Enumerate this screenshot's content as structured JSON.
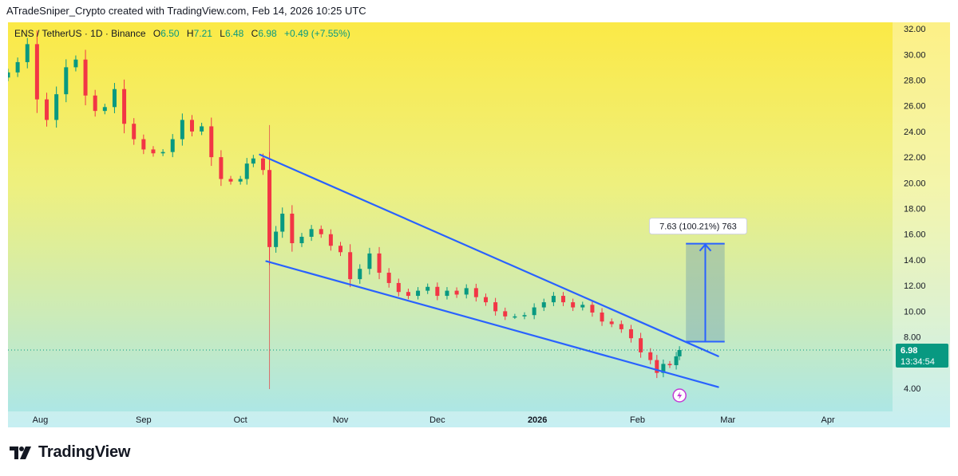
{
  "header": {
    "caption": "ATradeSniper_Crypto created with TradingView.com, Feb 14, 2026 10:25 UTC"
  },
  "legend": {
    "symbol": "ENS / TetherUS · 1D · Binance",
    "open_label": "O",
    "open": "6.50",
    "high_label": "H",
    "high": "7.21",
    "low_label": "L",
    "low": "6.48",
    "close_label": "C",
    "close": "6.98",
    "change": "+0.49 (+7.55%)"
  },
  "price_tag": {
    "price": "6.98",
    "countdown": "13:34:54"
  },
  "measure": {
    "label": "7.63 (100.21%) 763"
  },
  "footer": {
    "brand": "TradingView"
  },
  "colors": {
    "up": "#089981",
    "down": "#f23645",
    "trend": "#2962ff",
    "measure_fill": "#5b8fb0"
  },
  "chart_data": {
    "type": "candlestick",
    "title": "ENS / TetherUS · 1D · Binance",
    "x_ticks": [
      "Aug",
      "Sep",
      "Oct",
      "Nov",
      "Dec",
      "2026",
      "Feb",
      "Mar",
      "Apr"
    ],
    "y_ticks": [
      "32.00",
      "30.00",
      "28.00",
      "26.00",
      "24.00",
      "22.00",
      "20.00",
      "18.00",
      "16.00",
      "14.00",
      "12.00",
      "10.00",
      "8.00",
      "4.00"
    ],
    "ylim": [
      2.2,
      32.5
    ],
    "x_range": [
      "2025-07-21",
      "2026-04-21"
    ],
    "last_close": 6.98,
    "closes": [
      [
        "2025-07-21",
        28.6
      ],
      [
        "2025-07-24",
        29.4
      ],
      [
        "2025-07-27",
        30.8
      ],
      [
        "2025-07-30",
        26.5
      ],
      [
        "2025-08-02",
        24.9
      ],
      [
        "2025-08-05",
        26.9
      ],
      [
        "2025-08-08",
        29.0
      ],
      [
        "2025-08-11",
        29.6
      ],
      [
        "2025-08-14",
        26.8
      ],
      [
        "2025-08-17",
        25.6
      ],
      [
        "2025-08-20",
        25.9
      ],
      [
        "2025-08-23",
        27.3
      ],
      [
        "2025-08-26",
        24.6
      ],
      [
        "2025-08-29",
        23.4
      ],
      [
        "2025-09-01",
        22.6
      ],
      [
        "2025-09-04",
        22.3
      ],
      [
        "2025-09-07",
        22.4
      ],
      [
        "2025-09-10",
        23.4
      ],
      [
        "2025-09-13",
        24.9
      ],
      [
        "2025-09-16",
        24.0
      ],
      [
        "2025-09-19",
        24.4
      ],
      [
        "2025-09-22",
        22.0
      ],
      [
        "2025-09-25",
        20.3
      ],
      [
        "2025-09-28",
        20.1
      ],
      [
        "2025-10-01",
        20.3
      ],
      [
        "2025-10-03",
        21.5
      ],
      [
        "2025-10-05",
        21.9
      ],
      [
        "2025-10-08",
        21.0
      ],
      [
        "2025-10-10",
        15.0
      ],
      [
        "2025-10-12",
        16.2
      ],
      [
        "2025-10-14",
        17.6
      ],
      [
        "2025-10-17",
        15.3
      ],
      [
        "2025-10-20",
        15.8
      ],
      [
        "2025-10-23",
        16.4
      ],
      [
        "2025-10-26",
        16.0
      ],
      [
        "2025-10-29",
        15.1
      ],
      [
        "2025-11-01",
        14.6
      ],
      [
        "2025-11-04",
        12.5
      ],
      [
        "2025-11-07",
        13.3
      ],
      [
        "2025-11-10",
        14.5
      ],
      [
        "2025-11-13",
        13.0
      ],
      [
        "2025-11-16",
        12.2
      ],
      [
        "2025-11-19",
        11.5
      ],
      [
        "2025-11-22",
        11.2
      ],
      [
        "2025-11-25",
        11.6
      ],
      [
        "2025-11-28",
        11.9
      ],
      [
        "2025-12-01",
        11.2
      ],
      [
        "2025-12-04",
        11.6
      ],
      [
        "2025-12-07",
        11.3
      ],
      [
        "2025-12-10",
        11.8
      ],
      [
        "2025-12-13",
        11.1
      ],
      [
        "2025-12-16",
        10.7
      ],
      [
        "2025-12-19",
        10.0
      ],
      [
        "2025-12-22",
        9.6
      ],
      [
        "2025-12-25",
        9.6
      ],
      [
        "2025-12-28",
        9.7
      ],
      [
        "2025-12-31",
        10.3
      ],
      [
        "2026-01-03",
        10.7
      ],
      [
        "2026-01-06",
        11.2
      ],
      [
        "2026-01-09",
        10.7
      ],
      [
        "2026-01-12",
        10.3
      ],
      [
        "2026-01-15",
        10.5
      ],
      [
        "2026-01-18",
        9.9
      ],
      [
        "2026-01-21",
        9.2
      ],
      [
        "2026-01-24",
        9.0
      ],
      [
        "2026-01-27",
        8.6
      ],
      [
        "2026-01-30",
        7.9
      ],
      [
        "2026-02-02",
        6.8
      ],
      [
        "2026-02-05",
        6.2
      ],
      [
        "2026-02-07",
        5.2
      ],
      [
        "2026-02-09",
        5.9
      ],
      [
        "2026-02-11",
        5.8
      ],
      [
        "2026-02-13",
        6.49
      ],
      [
        "2026-02-14",
        6.98
      ]
    ],
    "trendlines": [
      {
        "name": "upper",
        "from": [
          "2025-10-07",
          22.2
        ],
        "to": [
          "2026-02-26",
          6.5
        ]
      },
      {
        "name": "lower",
        "from": [
          "2025-10-09",
          13.9
        ],
        "to": [
          "2026-02-26",
          4.1
        ]
      },
      {
        "name": "event-marker",
        "date": "2025-10-10"
      }
    ],
    "measure_range": {
      "from_date": "2026-02-16",
      "to_date": "2026-02-28",
      "from_price": 7.63,
      "to_price": 15.26
    }
  }
}
